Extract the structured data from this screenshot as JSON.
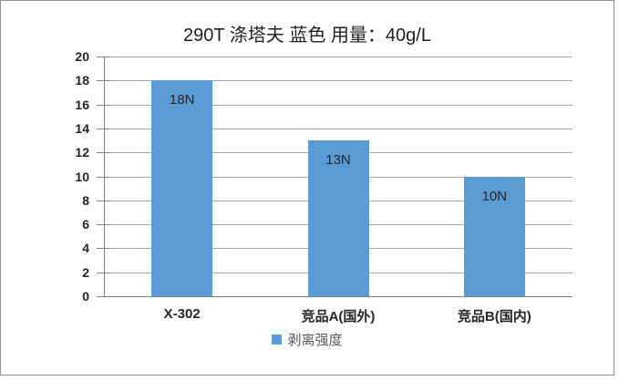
{
  "chart_data": {
    "type": "bar",
    "title": "290T 涤塔夫 蓝色  用量：40g/L",
    "categories": [
      "X-302",
      "竞品A(国外)",
      "竞品B(国内)"
    ],
    "series": [
      {
        "name": "剥离强度",
        "values": [
          18,
          13,
          10
        ]
      }
    ],
    "data_labels": [
      "18N",
      "13N",
      "10N"
    ],
    "xlabel": "",
    "ylabel": "",
    "ylim": [
      0,
      20
    ],
    "yticks": [
      0,
      2,
      4,
      6,
      8,
      10,
      12,
      14,
      16,
      18,
      20
    ],
    "grid": true,
    "legend": {
      "position": "bottom",
      "entries": [
        "剥离强度"
      ]
    },
    "colors": {
      "bar": "#5B9BD5",
      "gridline": "#A6A6A6",
      "axis": "#808080",
      "text": "#262626",
      "legend_text": "#595959",
      "frame_border": "#919191"
    }
  }
}
